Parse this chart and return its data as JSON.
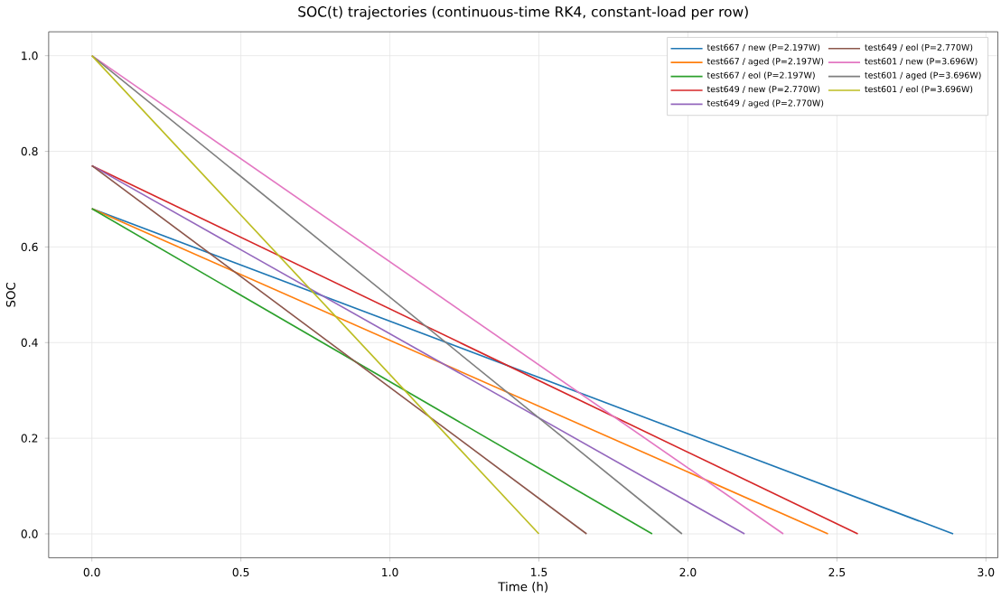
{
  "chart_data": {
    "type": "line",
    "title": "SOC(t) trajectories (continuous-time RK4, constant-load per row)",
    "xlabel": "Time (h)",
    "ylabel": "SOC",
    "xlim": [
      -0.145,
      3.04
    ],
    "ylim": [
      -0.05,
      1.05
    ],
    "xticks": [
      {
        "value": 0,
        "label": "0.0"
      },
      0.5,
      {
        "value": 1,
        "label": "1.0"
      },
      1.5,
      {
        "value": 2,
        "label": "2.0"
      },
      2.5,
      {
        "value": 3,
        "label": "3.0"
      }
    ],
    "yticks": [
      {
        "value": 0,
        "label": "0.0"
      },
      0.2,
      0.4,
      0.6,
      0.8,
      {
        "value": 1,
        "label": "1.0"
      }
    ],
    "grid": true,
    "legend": "top right",
    "marker": "none",
    "line_style": "solid",
    "series": [
      {
        "name": "test667 / new (P=2.197W)",
        "color": "#1f77b4",
        "x": [
          0,
          2.89
        ],
        "values": [
          0.68,
          0
        ]
      },
      {
        "name": "test667 / aged (P=2.197W)",
        "color": "#ff7f0e",
        "x": [
          0,
          2.47
        ],
        "values": [
          0.68,
          0
        ]
      },
      {
        "name": "test667 / eol (P=2.197W)",
        "color": "#2ca02c",
        "x": [
          0,
          1.88
        ],
        "values": [
          0.68,
          0
        ]
      },
      {
        "name": "test649 / new (P=2.770W)",
        "color": "#d62728",
        "x": [
          0,
          2.57
        ],
        "values": [
          0.77,
          0
        ]
      },
      {
        "name": "test649 / aged (P=2.770W)",
        "color": "#9467bd",
        "x": [
          0,
          2.19
        ],
        "values": [
          0.77,
          0
        ]
      },
      {
        "name": "test649 / eol (P=2.770W)",
        "color": "#8c564b",
        "x": [
          0,
          1.66
        ],
        "values": [
          0.77,
          0
        ]
      },
      {
        "name": "test601 / new (P=3.696W)",
        "color": "#e377c2",
        "x": [
          0,
          2.32
        ],
        "values": [
          1.0,
          0
        ]
      },
      {
        "name": "test601 / aged (P=3.696W)",
        "color": "#7f7f7f",
        "x": [
          0,
          1.98
        ],
        "values": [
          1.0,
          0
        ]
      },
      {
        "name": "test601 / eol (P=3.696W)",
        "color": "#bcbd22",
        "x": [
          0,
          1.5
        ],
        "values": [
          1.0,
          0
        ]
      }
    ]
  }
}
